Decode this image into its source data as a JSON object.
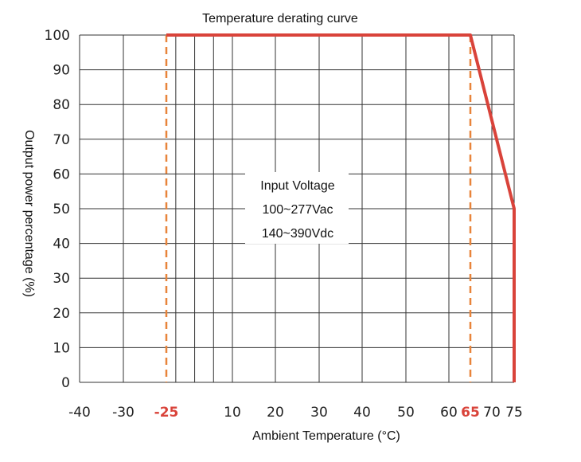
{
  "chart_data": {
    "type": "line",
    "title": "Temperature derating curve",
    "xlabel": "Ambient Temperature (°C)",
    "ylabel": "Output power percentage (%)",
    "xlim": [
      -40,
      75
    ],
    "ylim": [
      0,
      100
    ],
    "grid": true,
    "x_grid": [
      -40,
      -30,
      -25,
      -20,
      -10,
      0,
      10,
      20,
      30,
      40,
      50,
      60,
      65,
      70,
      75
    ],
    "y_ticks": [
      0,
      10,
      20,
      30,
      40,
      50,
      60,
      70,
      80,
      90,
      100
    ],
    "x_ticks": [
      {
        "value": -40,
        "label": "-40",
        "highlight": false
      },
      {
        "value": -30,
        "label": "-30",
        "highlight": false
      },
      {
        "value": -25,
        "label": "-25",
        "highlight": true
      },
      {
        "value": 10,
        "label": "10",
        "highlight": false
      },
      {
        "value": 20,
        "label": "20",
        "highlight": false
      },
      {
        "value": 30,
        "label": "30",
        "highlight": false
      },
      {
        "value": 40,
        "label": "40",
        "highlight": false
      },
      {
        "value": 50,
        "label": "50",
        "highlight": false
      },
      {
        "value": 60,
        "label": "60",
        "highlight": false
      },
      {
        "value": 65,
        "label": "65",
        "highlight": true
      },
      {
        "value": 70,
        "label": "70",
        "highlight": false
      },
      {
        "value": 75,
        "label": "75",
        "highlight": false
      }
    ],
    "series": [
      {
        "x": [
          -25,
          65,
          75,
          75
        ],
        "y": [
          100,
          100,
          50,
          0
        ]
      }
    ],
    "reference_lines": [
      -25,
      65
    ],
    "annotation": [
      "Input Voltage",
      "100~277Vac",
      "140~390Vdc"
    ],
    "colors": {
      "curve": "#d9433a",
      "reference": "#e8843a",
      "highlight_tick": "#d9433a",
      "grid": "#333333"
    }
  }
}
